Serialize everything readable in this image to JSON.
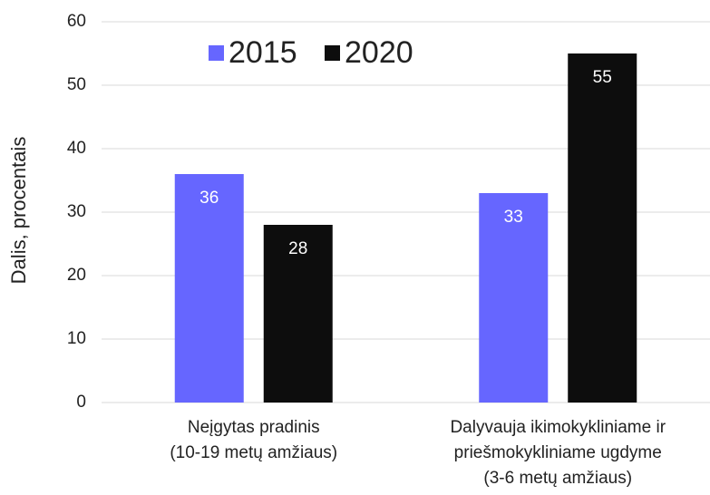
{
  "chart_data": {
    "type": "bar",
    "y_label": "Dalis, procentais",
    "categories": [
      "Neįgytas pradinis\n(10-19 metų amžiaus)",
      "Dalyvauja ikimokykliniame ir\npriešmokykliniame ugdyme\n(3-6 metų amžiaus)"
    ],
    "series": [
      {
        "name": "2015",
        "color": "#6666ff",
        "values": [
          36,
          33
        ]
      },
      {
        "name": "2020",
        "color": "#0d0d0d",
        "values": [
          28,
          55
        ]
      }
    ],
    "ylim": [
      0,
      60
    ],
    "yticks": [
      0,
      10,
      20,
      30,
      40,
      50,
      60
    ],
    "grid": true,
    "legend": "top"
  }
}
